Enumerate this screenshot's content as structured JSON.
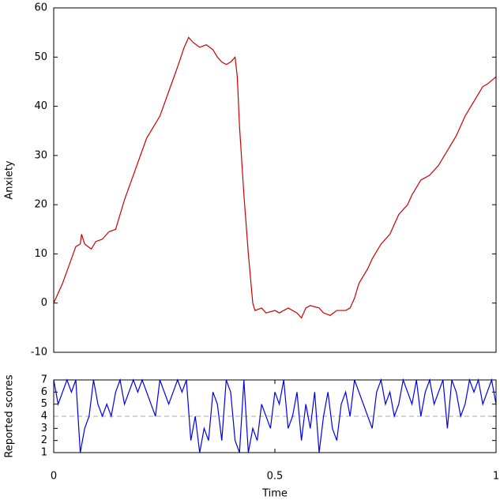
{
  "chart_data": [
    {
      "type": "line",
      "ylabel": "Anxiety",
      "x": [
        0,
        0.02,
        0.04,
        0.05,
        0.06,
        0.063,
        0.07,
        0.085,
        0.095,
        0.11,
        0.125,
        0.14,
        0.16,
        0.18,
        0.2,
        0.21,
        0.22,
        0.24,
        0.26,
        0.28,
        0.295,
        0.305,
        0.315,
        0.33,
        0.345,
        0.36,
        0.37,
        0.38,
        0.39,
        0.4,
        0.41,
        0.415,
        0.42,
        0.43,
        0.44,
        0.45,
        0.455,
        0.47,
        0.48,
        0.5,
        0.51,
        0.53,
        0.55,
        0.56,
        0.57,
        0.58,
        0.6,
        0.61,
        0.625,
        0.64,
        0.66,
        0.67,
        0.68,
        0.69,
        0.71,
        0.72,
        0.74,
        0.76,
        0.78,
        0.8,
        0.81,
        0.83,
        0.85,
        0.87,
        0.89,
        0.91,
        0.93,
        0.95,
        0.97,
        0.98,
        1
      ],
      "series": [
        {
          "name": "Anxiety",
          "color": "#cc0000",
          "values": [
            0,
            4,
            9,
            11.5,
            12,
            14,
            12,
            11,
            12.5,
            13,
            14.5,
            15,
            21,
            26,
            31,
            33.5,
            35,
            38,
            43,
            48,
            52,
            54,
            53,
            52,
            52.5,
            51.5,
            50,
            49,
            48.5,
            49,
            50,
            46,
            36,
            22,
            10,
            0,
            -1.5,
            -1,
            -2,
            -1.5,
            -2,
            -1,
            -2,
            -3,
            -1,
            -0.5,
            -1,
            -2,
            -2.5,
            -1.5,
            -1.5,
            -1,
            1,
            4,
            7,
            9,
            12,
            14,
            18,
            20,
            22,
            25,
            26,
            28,
            31,
            34,
            38,
            41,
            44,
            44.5,
            46
          ]
        }
      ],
      "xlim": [
        0,
        1
      ],
      "ylim": [
        -10,
        60
      ],
      "yticks": [
        -10,
        0,
        10,
        20,
        30,
        40,
        50,
        60
      ]
    },
    {
      "type": "line",
      "ylabel": "Reported scores",
      "xlabel": "Time",
      "x": [
        0,
        0.01,
        0.02,
        0.03,
        0.04,
        0.05,
        0.06,
        0.07,
        0.08,
        0.09,
        0.1,
        0.11,
        0.12,
        0.13,
        0.14,
        0.15,
        0.16,
        0.17,
        0.18,
        0.19,
        0.2,
        0.21,
        0.22,
        0.23,
        0.24,
        0.25,
        0.26,
        0.27,
        0.28,
        0.29,
        0.3,
        0.31,
        0.32,
        0.33,
        0.34,
        0.35,
        0.36,
        0.37,
        0.38,
        0.39,
        0.4,
        0.41,
        0.42,
        0.43,
        0.44,
        0.45,
        0.46,
        0.47,
        0.48,
        0.49,
        0.5,
        0.51,
        0.52,
        0.53,
        0.54,
        0.55,
        0.56,
        0.57,
        0.58,
        0.59,
        0.6,
        0.61,
        0.62,
        0.63,
        0.64,
        0.65,
        0.66,
        0.67,
        0.68,
        0.69,
        0.7,
        0.71,
        0.72,
        0.73,
        0.74,
        0.75,
        0.76,
        0.77,
        0.78,
        0.79,
        0.8,
        0.81,
        0.82,
        0.83,
        0.84,
        0.85,
        0.86,
        0.87,
        0.88,
        0.89,
        0.9,
        0.91,
        0.92,
        0.93,
        0.94,
        0.95,
        0.96,
        0.97,
        0.98,
        0.99,
        1
      ],
      "series": [
        {
          "name": "Reported scores",
          "color": "#0000ee",
          "values": [
            7,
            5,
            6,
            7,
            6,
            7,
            1,
            3,
            4,
            7,
            5,
            4,
            5,
            4,
            6,
            7,
            5,
            6,
            7,
            6,
            7,
            6,
            5,
            4,
            7,
            6,
            5,
            6,
            7,
            6,
            7,
            2,
            4,
            1,
            3,
            2,
            6,
            5,
            2,
            7,
            6,
            2,
            1,
            7,
            1,
            3,
            2,
            5,
            4,
            3,
            6,
            5,
            7,
            3,
            4,
            6,
            2,
            5,
            3,
            6,
            1,
            4,
            6,
            3,
            2,
            5,
            6,
            4,
            7,
            6,
            5,
            4,
            3,
            6,
            7,
            5,
            6,
            4,
            5,
            7,
            6,
            5,
            7,
            4,
            6,
            7,
            5,
            6,
            7,
            3,
            7,
            6,
            4,
            5,
            7,
            6,
            7,
            5,
            6,
            7,
            5
          ]
        }
      ],
      "hline": 4,
      "hline_color": "#aaaaaa",
      "xlim": [
        0,
        1
      ],
      "ylim": [
        1,
        7
      ],
      "yticks": [
        1,
        2,
        3,
        4,
        5,
        6,
        7
      ],
      "xticks": [
        0,
        0.5,
        1
      ]
    }
  ]
}
